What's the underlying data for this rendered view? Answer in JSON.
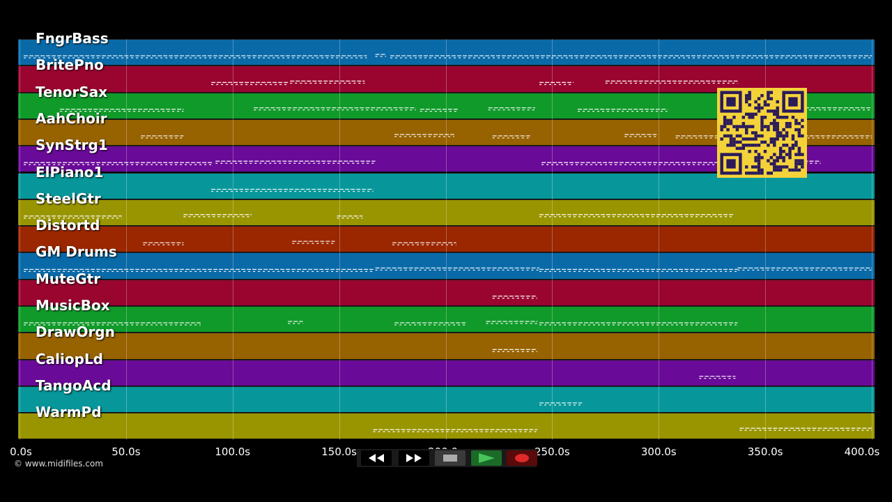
{
  "app": {
    "copyright": "© www.midifiles.com"
  },
  "tracks": [
    {
      "name": "FngrBass",
      "color": "#0a6aa8"
    },
    {
      "name": "BritePno",
      "color": "#9a0530"
    },
    {
      "name": "TenorSax",
      "color": "#109a2a"
    },
    {
      "name": "AahChoir",
      "color": "#976200"
    },
    {
      "name": "SynStrg1",
      "color": "#6a0a98"
    },
    {
      "name": "ElPiano1",
      "color": "#07979a"
    },
    {
      "name": "SteelGtr",
      "color": "#999500"
    },
    {
      "name": "Distortd",
      "color": "#9a2700"
    },
    {
      "name": "GM Drums",
      "color": "#0a6aa8"
    },
    {
      "name": "MuteGtr",
      "color": "#9a0530"
    },
    {
      "name": "MusicBox",
      "color": "#109a2a"
    },
    {
      "name": "DrawOrgn",
      "color": "#976200"
    },
    {
      "name": "CaliopLd",
      "color": "#6a0a98"
    },
    {
      "name": "TangoAcd",
      "color": "#07979a"
    },
    {
      "name": "WarmPd",
      "color": "#999500"
    }
  ],
  "timeline": {
    "max_seconds": 400,
    "ticks": [
      "0.0s",
      "50.0s",
      "100.0s",
      "150.0s",
      "200.0s",
      "250.0s",
      "300.0s",
      "350.0s",
      "400.0s"
    ],
    "tick_values": [
      0,
      50,
      100,
      150,
      200,
      250,
      300,
      350,
      400
    ]
  },
  "controls": {
    "rewind": "rewind-icon",
    "fast_forward": "fast-forward-icon",
    "stop": "stop-icon",
    "play": "play-icon",
    "record": "record-icon"
  },
  "qr": {
    "label": "qr-code"
  },
  "note_segments": [
    [
      [
        2,
        163
      ],
      [
        167,
        172
      ],
      [
        174,
        400
      ]
    ],
    [
      [
        90,
        126
      ],
      [
        127,
        162
      ],
      [
        244,
        260
      ],
      [
        275,
        337
      ]
    ],
    [
      [
        19,
        77
      ],
      [
        110,
        186
      ],
      [
        188,
        206
      ],
      [
        220,
        242
      ],
      [
        262,
        304
      ],
      [
        366,
        400
      ]
    ],
    [
      [
        57,
        77
      ],
      [
        176,
        204
      ],
      [
        222,
        240
      ],
      [
        284,
        299
      ],
      [
        308,
        400
      ]
    ],
    [
      [
        2,
        91
      ],
      [
        92,
        167
      ],
      [
        245,
        336
      ],
      [
        355,
        376
      ]
    ],
    [
      [
        90,
        166
      ]
    ],
    [
      [
        2,
        48
      ],
      [
        77,
        109
      ],
      [
        149,
        161
      ],
      [
        244,
        335
      ]
    ],
    [
      [
        58,
        77
      ],
      [
        128,
        148
      ],
      [
        175,
        205
      ]
    ],
    [
      [
        2,
        166
      ],
      [
        167,
        244
      ],
      [
        244,
        337
      ],
      [
        337,
        400
      ]
    ],
    [
      [
        222,
        243
      ]
    ],
    [
      [
        2,
        85
      ],
      [
        126,
        133
      ],
      [
        176,
        210
      ],
      [
        219,
        243
      ],
      [
        244,
        337
      ]
    ],
    [
      [
        222,
        243
      ]
    ],
    [
      [
        319,
        336
      ]
    ],
    [
      [
        244,
        264
      ]
    ],
    [
      [
        166,
        243
      ],
      [
        338,
        400
      ]
    ]
  ]
}
